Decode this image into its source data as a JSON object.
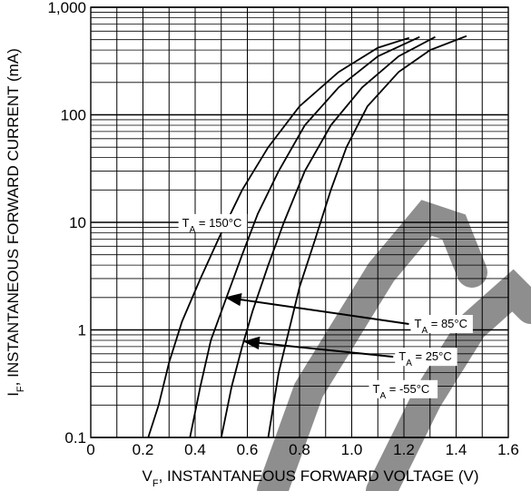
{
  "chart_data": {
    "type": "line",
    "xlabel": {
      "main": "V",
      "sub": "F",
      "rest": ", INSTANTANEOUS FORWARD VOLTAGE (V)"
    },
    "ylabel": {
      "main": "I",
      "sub": "F",
      "rest": ", INSTANTANEOUS FORWARD CURRENT (mA)"
    },
    "xlim": [
      0,
      1.6
    ],
    "ylim": [
      0.1,
      1000
    ],
    "yscale": "log",
    "grid": true,
    "x_ticks": [
      {
        "value": 0,
        "label": "0"
      },
      {
        "value": 0.2,
        "label": "0.2"
      },
      {
        "value": 0.4,
        "label": "0.4"
      },
      {
        "value": 0.6,
        "label": "0.6"
      },
      {
        "value": 0.8,
        "label": "0.8"
      },
      {
        "value": 1.0,
        "label": "1.0"
      },
      {
        "value": 1.2,
        "label": "1.2"
      },
      {
        "value": 1.4,
        "label": "1.4"
      },
      {
        "value": 1.6,
        "label": "1.6"
      }
    ],
    "y_ticks": [
      {
        "value": 0.1,
        "label": "0.1"
      },
      {
        "value": 1,
        "label": "1"
      },
      {
        "value": 10,
        "label": "10"
      },
      {
        "value": 100,
        "label": "100"
      },
      {
        "value": 1000,
        "label": "1,000"
      }
    ],
    "series": [
      {
        "name": "150",
        "label": {
          "pre": "T",
          "sub": "A",
          "post": " = 150°C"
        },
        "points": [
          [
            0.22,
            0.1
          ],
          [
            0.26,
            0.2
          ],
          [
            0.3,
            0.5
          ],
          [
            0.35,
            1.2
          ],
          [
            0.42,
            3
          ],
          [
            0.5,
            8
          ],
          [
            0.58,
            20
          ],
          [
            0.68,
            50
          ],
          [
            0.8,
            120
          ],
          [
            0.95,
            250
          ],
          [
            1.1,
            420
          ],
          [
            1.22,
            520
          ]
        ]
      },
      {
        "name": "85",
        "label": {
          "pre": "T",
          "sub": "A",
          "post": " = 85°C"
        },
        "points": [
          [
            0.38,
            0.1
          ],
          [
            0.42,
            0.3
          ],
          [
            0.46,
            0.8
          ],
          [
            0.52,
            2
          ],
          [
            0.58,
            5
          ],
          [
            0.64,
            12
          ],
          [
            0.72,
            30
          ],
          [
            0.82,
            80
          ],
          [
            0.95,
            180
          ],
          [
            1.1,
            350
          ],
          [
            1.26,
            530
          ]
        ]
      },
      {
        "name": "25",
        "label": {
          "pre": "T",
          "sub": "A",
          "post": " = 25°C"
        },
        "points": [
          [
            0.5,
            0.1
          ],
          [
            0.54,
            0.3
          ],
          [
            0.58,
            0.7
          ],
          [
            0.62,
            1.5
          ],
          [
            0.68,
            4
          ],
          [
            0.74,
            10
          ],
          [
            0.82,
            30
          ],
          [
            0.92,
            80
          ],
          [
            1.04,
            180
          ],
          [
            1.18,
            350
          ],
          [
            1.32,
            530
          ]
        ]
      },
      {
        "name": "-55",
        "label": {
          "pre": "T",
          "sub": "A",
          "post": " = -55°C"
        },
        "points": [
          [
            0.68,
            0.1
          ],
          [
            0.72,
            0.4
          ],
          [
            0.76,
            1
          ],
          [
            0.8,
            2.5
          ],
          [
            0.86,
            7
          ],
          [
            0.92,
            20
          ],
          [
            0.98,
            50
          ],
          [
            1.06,
            120
          ],
          [
            1.18,
            250
          ],
          [
            1.3,
            400
          ],
          [
            1.44,
            540
          ]
        ]
      }
    ],
    "annotations": [
      {
        "series": "150",
        "text_at": [
          0.35,
          9.1
        ],
        "arrow_to": null
      },
      {
        "series": "85",
        "text_at": [
          1.24,
          1.05
        ],
        "arrow_to": [
          0.52,
          2.0
        ]
      },
      {
        "series": "25",
        "text_at": [
          1.18,
          0.52
        ],
        "arrow_to": [
          0.59,
          0.78
        ]
      },
      {
        "series": "-55",
        "text_at": [
          1.08,
          0.26
        ],
        "arrow_to": null
      }
    ]
  }
}
